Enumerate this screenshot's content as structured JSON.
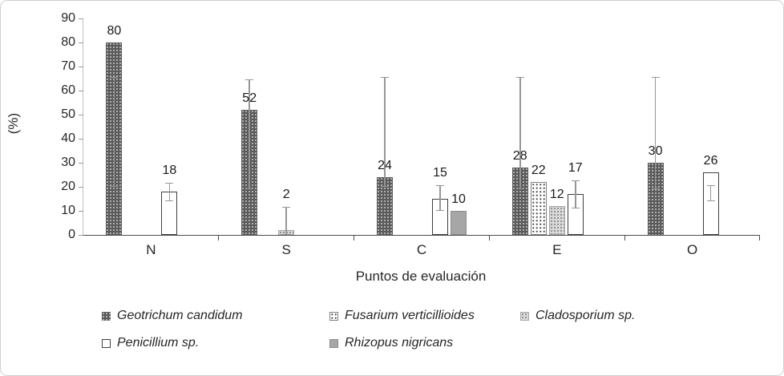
{
  "chart_data": {
    "type": "bar",
    "xlabel": "Puntos de evaluación",
    "ylabel": "(%)",
    "ylim": [
      0,
      90
    ],
    "ytick_step": 10,
    "grid": false,
    "legend_position": "bottom",
    "categories": [
      "N",
      "S",
      "C",
      "E",
      "O"
    ],
    "series": [
      {
        "name": "Geotrichum candidum",
        "style": "dark-dots",
        "label_ignores_error": true,
        "values": [
          80,
          52,
          24,
          28,
          30
        ],
        "errors": [
          {
            "lo": 20,
            "hi": 66
          },
          {
            "lo": 19,
            "hi": 65
          },
          {
            "lo": 20,
            "hi": 66
          },
          {
            "lo": 19,
            "hi": 66
          },
          {
            "lo": 19,
            "hi": 66
          }
        ]
      },
      {
        "name": "Fusarium verticillioides",
        "style": "white-dots",
        "values": [
          0,
          0,
          0,
          22,
          0
        ],
        "errors": [
          null,
          null,
          null,
          null,
          null
        ]
      },
      {
        "name": "Cladosporium sp.",
        "style": "light-dots",
        "values": [
          0,
          2,
          0,
          12,
          0
        ],
        "errors": [
          null,
          {
            "lo": 0,
            "hi": 12
          },
          null,
          null,
          null
        ]
      },
      {
        "name": "Penicillium sp.",
        "style": "white-solid",
        "values": [
          18,
          0,
          15,
          17,
          26
        ],
        "errors": [
          {
            "lo": 14,
            "hi": 22
          },
          null,
          {
            "lo": 10,
            "hi": 21
          },
          {
            "lo": 11,
            "hi": 23
          },
          {
            "lo": 14,
            "hi": 21
          }
        ]
      },
      {
        "name": "Rhizopus nigricans",
        "style": "gray-solid",
        "values": [
          0,
          0,
          10,
          0,
          0
        ],
        "errors": [
          null,
          null,
          null,
          null,
          null
        ]
      }
    ],
    "colors": {
      "dark_fill": "#5a5a5a",
      "light_fill": "#d9d9d9",
      "solid_gray_fill": "#a6a6a6",
      "error_bar": "#969696",
      "axis": "#4d4d4d",
      "text": "#262626",
      "frame_border": "#cfcfcf"
    }
  }
}
